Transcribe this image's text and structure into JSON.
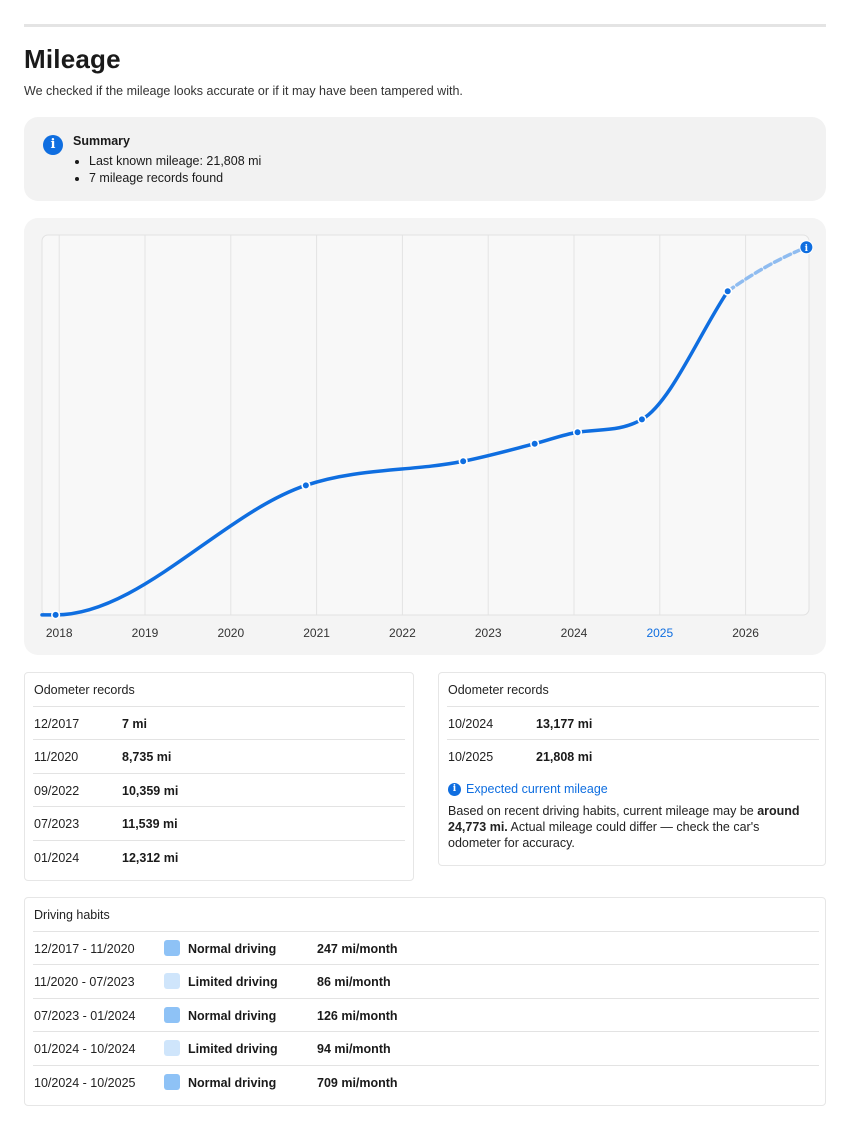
{
  "page": {
    "title": "Mileage",
    "subtitle": "We checked if the mileage looks accurate or if it may have been tampered with."
  },
  "summary": {
    "title": "Summary",
    "items": [
      "Last known mileage: 21,808 mi",
      "7 mileage records found"
    ]
  },
  "chart_data": {
    "type": "line",
    "x_axis_years": [
      "2018",
      "2019",
      "2020",
      "2021",
      "2022",
      "2023",
      "2024",
      "2025",
      "2026"
    ],
    "highlighted_year": "2025",
    "series": [
      {
        "recorded_points": [
          {
            "x": "12/2017",
            "y": 7
          },
          {
            "x": "11/2020",
            "y": 8735
          },
          {
            "x": "09/2022",
            "y": 10359
          },
          {
            "x": "07/2023",
            "y": 11539
          },
          {
            "x": "01/2024",
            "y": 12312
          },
          {
            "x": "10/2024",
            "y": 13177
          },
          {
            "x": "10/2025",
            "y": 21808
          }
        ],
        "projected_point": {
          "x": "2026-09",
          "y": 24773
        }
      }
    ],
    "colors": {
      "line": "#0f6ee0",
      "projection": "#8fbcf0",
      "highlight_year": "#0f6ee0"
    },
    "grid": true
  },
  "records_left": {
    "header": "Odometer records",
    "rows": [
      {
        "date": "12/2017",
        "miles": "7 mi"
      },
      {
        "date": "11/2020",
        "miles": "8,735 mi"
      },
      {
        "date": "09/2022",
        "miles": "10,359 mi"
      },
      {
        "date": "07/2023",
        "miles": "11,539 mi"
      },
      {
        "date": "01/2024",
        "miles": "12,312 mi"
      }
    ]
  },
  "records_right": {
    "header": "Odometer records",
    "rows": [
      {
        "date": "10/2024",
        "miles": "13,177 mi"
      },
      {
        "date": "10/2025",
        "miles": "21,808 mi"
      }
    ],
    "expected": {
      "title": "Expected current mileage",
      "body_pre": "Based on recent driving habits, current mileage may be ",
      "body_bold": "around 24,773 mi.",
      "body_post": " Actual mileage could differ — check the car's odometer for accuracy."
    }
  },
  "habits": {
    "header": "Driving habits",
    "rows": [
      {
        "period": "12/2017 - 11/2020",
        "type": "Normal driving",
        "rate": "247 mi/month",
        "color": "#8ec2f6"
      },
      {
        "period": "11/2020 - 07/2023",
        "type": "Limited driving",
        "rate": "86 mi/month",
        "color": "#cfe5fb"
      },
      {
        "period": "07/2023 - 01/2024",
        "type": "Normal driving",
        "rate": "126 mi/month",
        "color": "#8ec2f6"
      },
      {
        "period": "01/2024 - 10/2024",
        "type": "Limited driving",
        "rate": "94 mi/month",
        "color": "#cfe5fb"
      },
      {
        "period": "10/2024 - 10/2025",
        "type": "Normal driving",
        "rate": "709 mi/month",
        "color": "#8ec2f6"
      }
    ]
  }
}
